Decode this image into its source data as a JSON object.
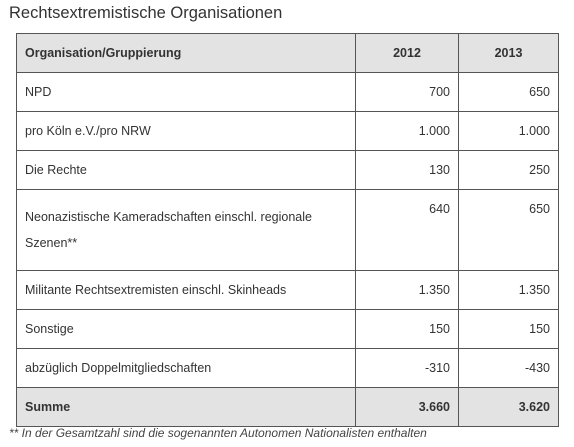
{
  "title": "Rechtsextremistische Organisationen",
  "table": {
    "headers": [
      "Organisation/Gruppierung",
      "2012",
      "2013"
    ],
    "rows": [
      {
        "name": "NPD",
        "y2012": "700",
        "y2013": "650"
      },
      {
        "name": "pro Köln e.V./pro NRW",
        "y2012": "1.000",
        "y2013": "1.000"
      },
      {
        "name": "Die Rechte",
        "y2012": "130",
        "y2013": "250"
      },
      {
        "name": "Neonazistische Kameradschaften einschl. regionale Szenen**",
        "y2012": "640",
        "y2013": "650"
      },
      {
        "name": "Militante Rechtsextremisten einschl. Skinheads",
        "y2012": "1.350",
        "y2013": "1.350"
      },
      {
        "name": "Sonstige",
        "y2012": "150",
        "y2013": "150"
      },
      {
        "name": "abzüglich Doppelmitgliedschaften",
        "y2012": "-310",
        "y2013": "-430"
      }
    ],
    "total": {
      "name": "Summe",
      "y2012": "3.660",
      "y2013": "3.620"
    }
  },
  "footnote": "** In der Gesamtzahl sind die sogenannten Autonomen Nationalisten enthalten"
}
